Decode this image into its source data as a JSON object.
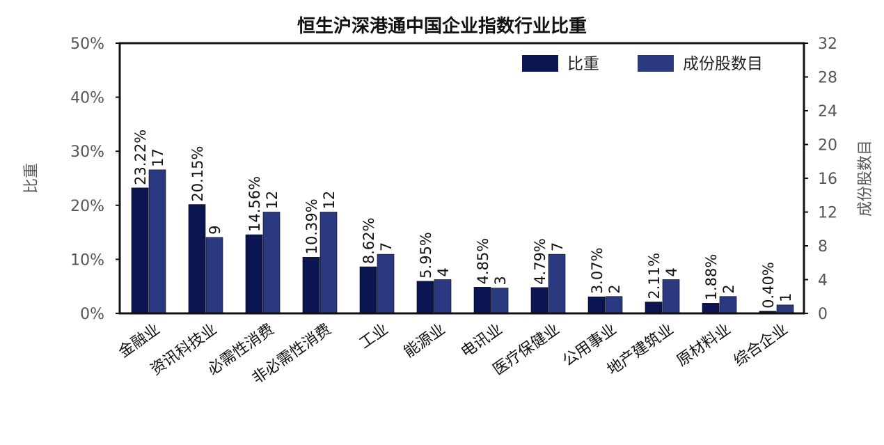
{
  "chart_data": {
    "type": "bar",
    "title": "恒生沪深港通中国企业指数行业比重",
    "ylabel": "比重",
    "y2label": "成份股数目",
    "ylim": [
      0,
      50
    ],
    "y2lim": [
      0,
      32
    ],
    "yticks": [
      "0%",
      "10%",
      "20%",
      "30%",
      "40%",
      "50%"
    ],
    "y2ticks": [
      "0",
      "4",
      "8",
      "12",
      "16",
      "20",
      "24",
      "28",
      "32"
    ],
    "legend_position": "top-right",
    "categories": [
      "金融业",
      "资讯科技业",
      "必需性消费",
      "非必需性消费",
      "工业",
      "能源业",
      "电讯业",
      "医疗保健业",
      "公用事业",
      "地产建筑业",
      "原材料业",
      "综合企业"
    ],
    "series": [
      {
        "name": "比重",
        "axis": "left",
        "color": "#0b1551",
        "values": [
          23.22,
          20.15,
          14.56,
          10.39,
          8.62,
          5.95,
          4.85,
          4.79,
          3.07,
          2.11,
          1.88,
          0.4
        ],
        "labels": [
          "23.22%",
          "20.15%",
          "14.56%",
          "10.39%",
          "8.62%",
          "5.95%",
          "4.85%",
          "4.79%",
          "3.07%",
          "2.11%",
          "1.88%",
          "0.40%"
        ]
      },
      {
        "name": "成份股数目",
        "axis": "right",
        "color": "#2b3a80",
        "values": [
          17,
          9,
          12,
          12,
          7,
          4,
          3,
          7,
          2,
          4,
          2,
          1
        ],
        "labels": [
          "17",
          "9",
          "12",
          "12",
          "7",
          "4",
          "3",
          "7",
          "2",
          "4",
          "2",
          "1"
        ]
      }
    ]
  }
}
